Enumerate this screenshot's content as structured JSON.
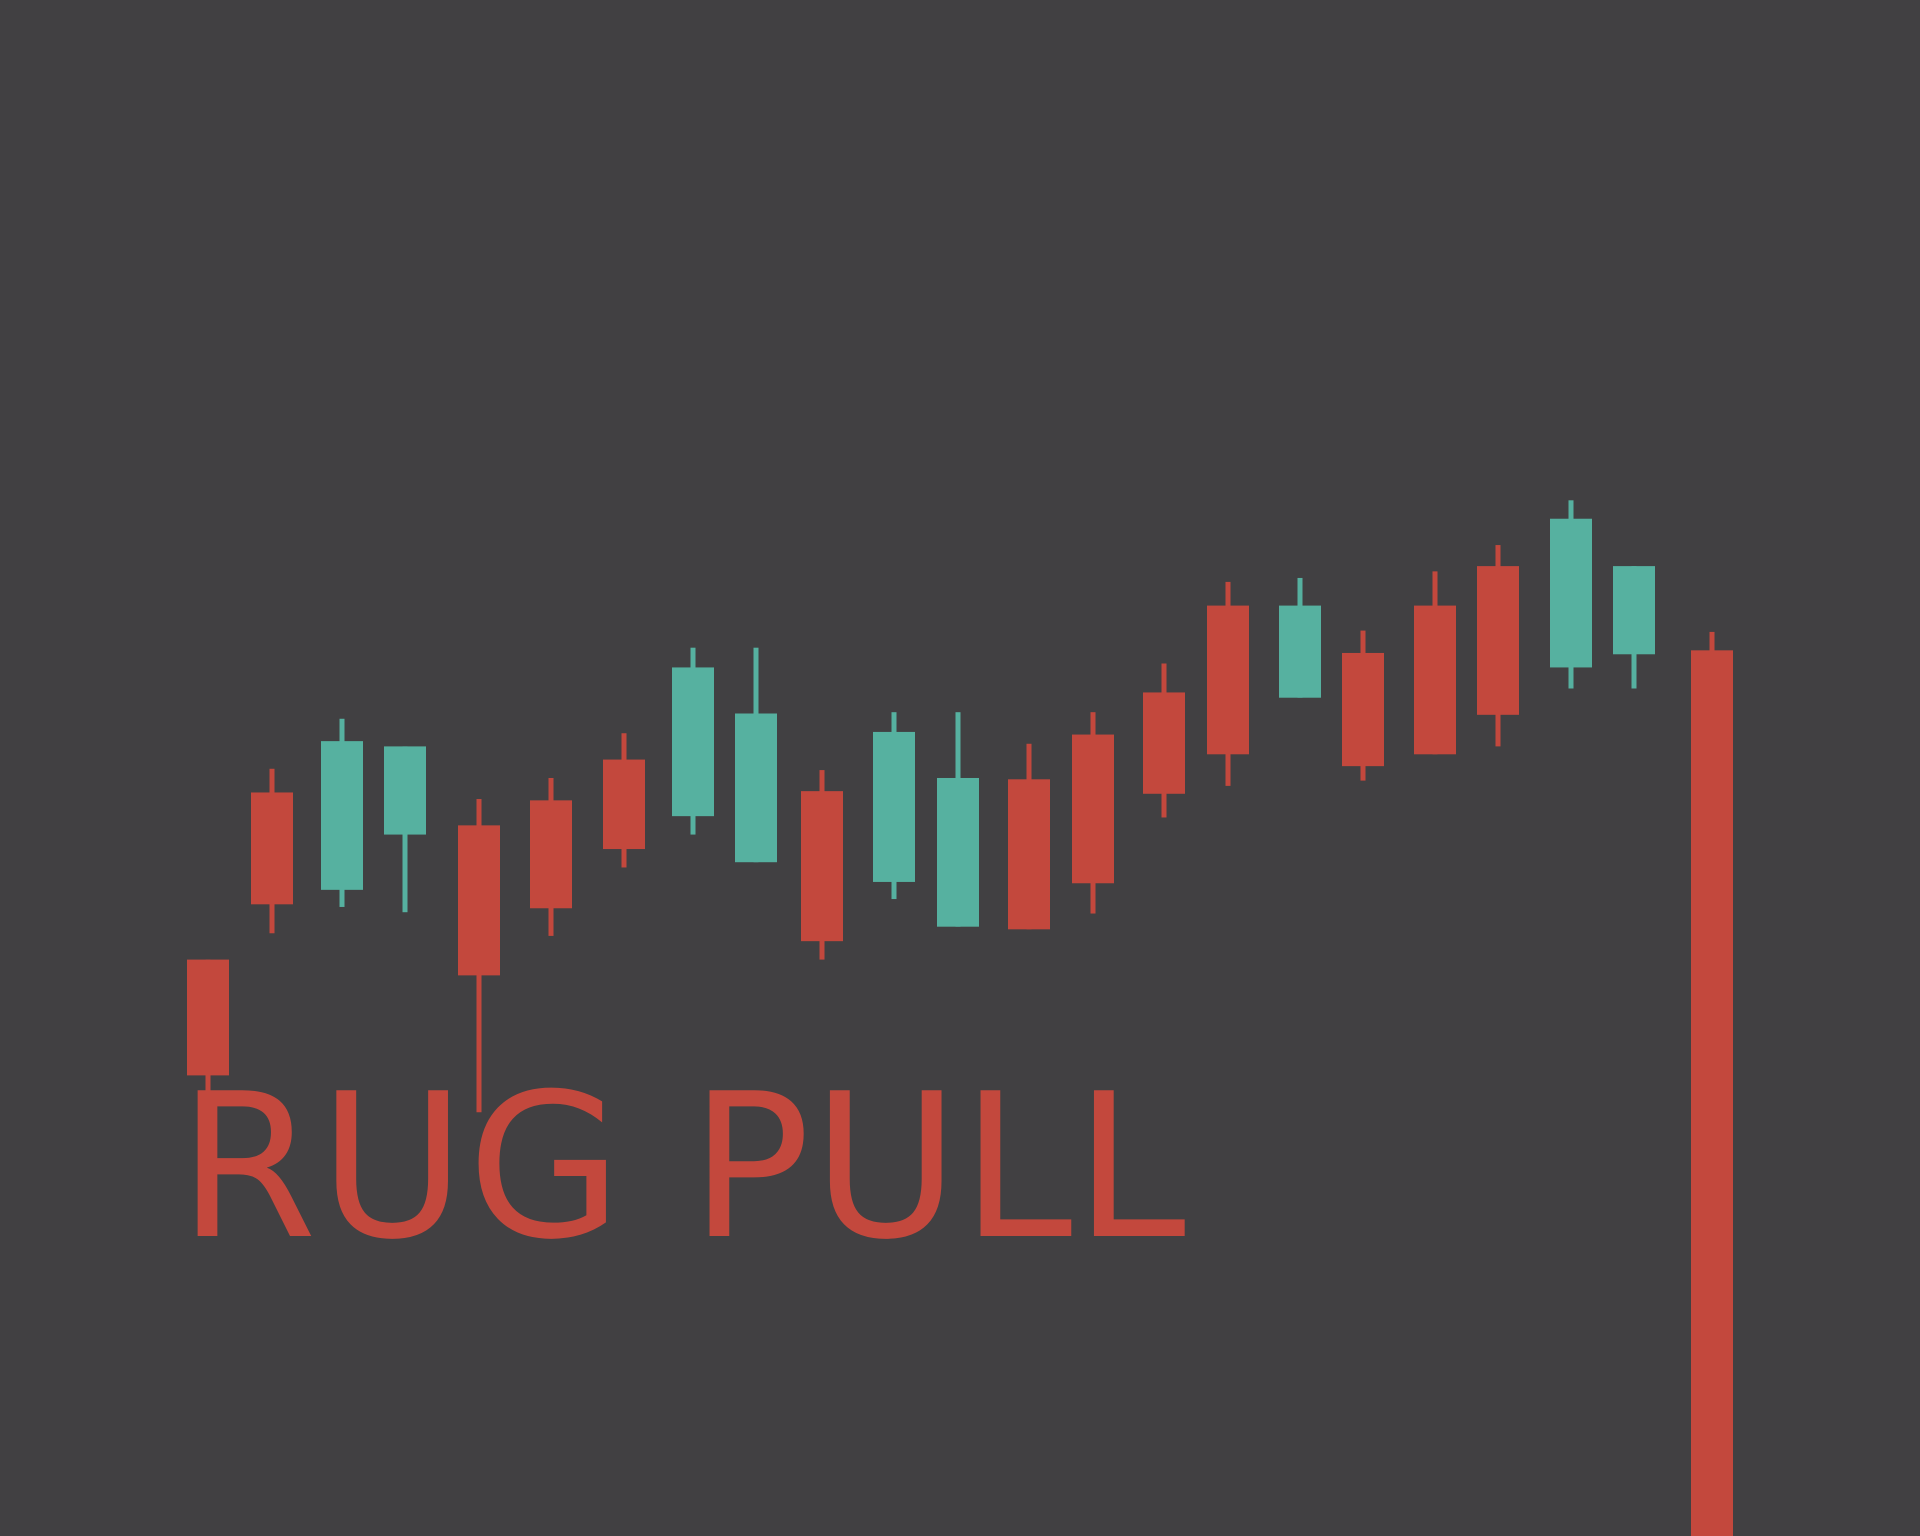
{
  "headline": "RUG PULL",
  "colors": {
    "background": "#414042",
    "bearish": "#c3483d",
    "bullish": "#56b1a0",
    "headline": "#c3483d"
  },
  "chart_data": {
    "type": "candlestick",
    "x_axis": "none",
    "y_axis": "none",
    "grid": false,
    "legend": "none",
    "ylim": [
      0,
      100
    ],
    "candles": [
      {
        "open": 43.8,
        "close": 35.0,
        "high": 43.8,
        "low": 32.5,
        "trend": "bearish"
      },
      {
        "open": 56.5,
        "close": 48.0,
        "high": 58.3,
        "low": 45.8,
        "trend": "bearish"
      },
      {
        "open": 49.1,
        "close": 60.4,
        "high": 62.1,
        "low": 47.8,
        "trend": "bullish"
      },
      {
        "open": 53.3,
        "close": 60.0,
        "high": 60.0,
        "low": 47.4,
        "trend": "bullish"
      },
      {
        "open": 54.0,
        "close": 42.6,
        "high": 56.0,
        "low": 32.2,
        "trend": "bearish"
      },
      {
        "open": 55.9,
        "close": 47.7,
        "high": 57.6,
        "low": 45.6,
        "trend": "bearish"
      },
      {
        "open": 59.0,
        "close": 52.2,
        "high": 61.0,
        "low": 50.8,
        "trend": "bearish"
      },
      {
        "open": 54.7,
        "close": 66.0,
        "high": 67.5,
        "low": 53.3,
        "trend": "bullish"
      },
      {
        "open": 51.2,
        "close": 62.5,
        "high": 67.5,
        "low": 51.2,
        "trend": "bullish"
      },
      {
        "open": 56.6,
        "close": 45.2,
        "high": 58.2,
        "low": 43.8,
        "trend": "bearish"
      },
      {
        "open": 49.7,
        "close": 61.1,
        "high": 62.6,
        "low": 48.4,
        "trend": "bullish"
      },
      {
        "open": 46.3,
        "close": 57.6,
        "high": 62.6,
        "low": 46.3,
        "trend": "bullish"
      },
      {
        "open": 57.5,
        "close": 46.1,
        "high": 60.2,
        "low": 46.1,
        "trend": "bearish"
      },
      {
        "open": 60.9,
        "close": 49.6,
        "high": 62.6,
        "low": 47.3,
        "trend": "bearish"
      },
      {
        "open": 64.1,
        "close": 56.4,
        "high": 66.3,
        "low": 54.6,
        "trend": "bearish"
      },
      {
        "open": 70.7,
        "close": 59.4,
        "high": 72.5,
        "low": 57.0,
        "trend": "bearish"
      },
      {
        "open": 63.7,
        "close": 70.7,
        "high": 72.8,
        "low": 63.7,
        "trend": "bullish"
      },
      {
        "open": 67.1,
        "close": 58.5,
        "high": 68.8,
        "low": 57.4,
        "trend": "bearish"
      },
      {
        "open": 70.7,
        "close": 59.4,
        "high": 73.3,
        "low": 59.4,
        "trend": "bearish"
      },
      {
        "open": 73.7,
        "close": 62.4,
        "high": 75.3,
        "low": 60.0,
        "trend": "bearish"
      },
      {
        "open": 66.0,
        "close": 77.3,
        "high": 78.7,
        "low": 64.4,
        "trend": "bullish"
      },
      {
        "open": 67.0,
        "close": 73.7,
        "high": 73.7,
        "low": 64.4,
        "trend": "bullish"
      },
      {
        "open": 67.3,
        "close": 0.0,
        "high": 68.7,
        "low": 0.0,
        "trend": "bearish"
      }
    ]
  }
}
